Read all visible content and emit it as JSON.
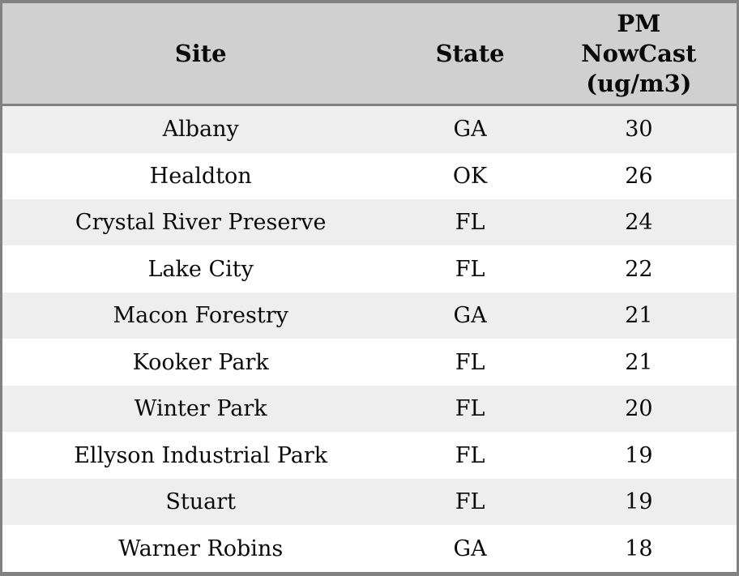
{
  "chart_data": {
    "type": "table",
    "title": "",
    "columns": [
      "Site",
      "State",
      "PM NowCast (ug/m3)"
    ],
    "rows": [
      [
        "Albany",
        "GA",
        "30"
      ],
      [
        "Healdton",
        "OK",
        "26"
      ],
      [
        "Crystal River Preserve",
        "FL",
        "24"
      ],
      [
        "Lake City",
        "FL",
        "22"
      ],
      [
        "Macon Forestry",
        "GA",
        "21"
      ],
      [
        "Kooker Park",
        "FL",
        "21"
      ],
      [
        "Winter Park",
        "FL",
        "20"
      ],
      [
        "Ellyson Industrial Park",
        "FL",
        "19"
      ],
      [
        "Stuart",
        "FL",
        "19"
      ],
      [
        "Warner Robins",
        "GA",
        "18"
      ]
    ],
    "layout": {
      "zebra_striping": true,
      "alignment": "center"
    }
  },
  "colors": {
    "frame_border": "#818181",
    "header_background": "#d0d0d0",
    "row_odd_background": "#eeeeee",
    "row_even_background": "#ffffff",
    "text": "#0a0a0a"
  }
}
